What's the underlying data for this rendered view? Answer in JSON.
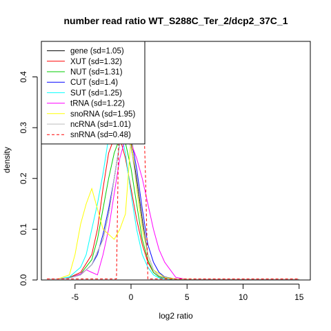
{
  "chart_data": {
    "type": "line",
    "title": "number read ratio WT_S288C_Ter_2/dcp2_37C_1",
    "xlabel": "log2 ratio",
    "ylabel": "density",
    "xlim": [
      -8,
      16
    ],
    "ylim": [
      0,
      0.47
    ],
    "xticks": [
      -5,
      0,
      5,
      10,
      15
    ],
    "yticks": [
      0.0,
      0.1,
      0.2,
      0.3,
      0.4
    ],
    "x_tick_labels": [
      "-5",
      "0",
      "5",
      "10",
      "15"
    ],
    "y_tick_labels": [
      "0.0",
      "0.1",
      "0.2",
      "0.3",
      "0.4"
    ],
    "grid": false,
    "legend_position": "top-left",
    "series": [
      {
        "name": "gene (sd=1.05)",
        "color": "#000000",
        "dash": false,
        "x": [
          -7.5,
          -6.5,
          -5.5,
          -4.5,
          -3.5,
          -2.5,
          -2,
          -1.5,
          -1,
          -0.5,
          0,
          0.5,
          1,
          1.5,
          2,
          2.5,
          3,
          3.5,
          4,
          5,
          6,
          8,
          10,
          12,
          15
        ],
        "y": [
          0.002,
          0.002,
          0.004,
          0.01,
          0.03,
          0.08,
          0.13,
          0.2,
          0.27,
          0.3,
          0.27,
          0.2,
          0.12,
          0.05,
          0.02,
          0.008,
          0.004,
          0.002,
          0.001,
          0.001,
          0.001,
          0.001,
          0.001,
          0.001,
          0.001
        ]
      },
      {
        "name": "XUT (sd=1.32)",
        "color": "#ff0000",
        "dash": false,
        "x": [
          -7.5,
          -6.5,
          -5.5,
          -4.5,
          -3.5,
          -3,
          -2.5,
          -2,
          -1.5,
          -1,
          -0.5,
          0,
          0.5,
          1,
          1.5,
          2,
          2.5,
          3,
          4,
          6,
          8,
          10,
          12,
          15
        ],
        "y": [
          0.002,
          0.002,
          0.005,
          0.015,
          0.05,
          0.1,
          0.18,
          0.25,
          0.28,
          0.28,
          0.24,
          0.18,
          0.12,
          0.07,
          0.035,
          0.015,
          0.006,
          0.003,
          0.001,
          0.001,
          0.001,
          0.001,
          0.001,
          0.001
        ]
      },
      {
        "name": "NUT (sd=1.31)",
        "color": "#00cd00",
        "dash": false,
        "x": [
          -7.5,
          -6.5,
          -5.5,
          -4.5,
          -3.5,
          -3,
          -2.5,
          -2,
          -1.5,
          -1,
          -0.5,
          0,
          0.5,
          1,
          1.5,
          2,
          2.5,
          3,
          4,
          6,
          8,
          10,
          12,
          15
        ],
        "y": [
          0.002,
          0.002,
          0.005,
          0.012,
          0.04,
          0.08,
          0.14,
          0.2,
          0.25,
          0.28,
          0.27,
          0.22,
          0.15,
          0.08,
          0.04,
          0.015,
          0.006,
          0.003,
          0.001,
          0.001,
          0.001,
          0.001,
          0.001,
          0.001
        ]
      },
      {
        "name": "CUT (sd=1.4)",
        "color": "#0000ff",
        "dash": false,
        "x": [
          -7.5,
          -6.5,
          -5.5,
          -4.5,
          -3.5,
          -3,
          -2.5,
          -2,
          -1.5,
          -1,
          -0.5,
          0,
          0.5,
          1,
          1.5,
          2,
          2.5,
          3,
          4,
          6,
          8,
          10,
          12,
          15
        ],
        "y": [
          0.002,
          0.002,
          0.004,
          0.01,
          0.03,
          0.05,
          0.09,
          0.14,
          0.2,
          0.27,
          0.3,
          0.28,
          0.22,
          0.14,
          0.07,
          0.035,
          0.015,
          0.006,
          0.002,
          0.001,
          0.001,
          0.001,
          0.001,
          0.001
        ]
      },
      {
        "name": "SUT (sd=1.25)",
        "color": "#00ffff",
        "dash": false,
        "x": [
          -7.5,
          -6.5,
          -5.5,
          -4.5,
          -4,
          -3.5,
          -3,
          -2.5,
          -2,
          -1.5,
          -1,
          -0.5,
          0,
          0.5,
          1,
          1.5,
          2,
          2.5,
          3,
          4,
          6,
          8,
          10,
          12,
          15
        ],
        "y": [
          0.002,
          0.002,
          0.006,
          0.025,
          0.05,
          0.1,
          0.15,
          0.21,
          0.28,
          0.31,
          0.3,
          0.25,
          0.17,
          0.1,
          0.05,
          0.025,
          0.01,
          0.004,
          0.002,
          0.001,
          0.001,
          0.001,
          0.001,
          0.001,
          0.001
        ]
      },
      {
        "name": "tRNA (sd=1.22)",
        "color": "#ff00ff",
        "dash": false,
        "x": [
          -7.5,
          -6.5,
          -5.5,
          -4.5,
          -4,
          -3.5,
          -3,
          -2.5,
          -2,
          -1.5,
          -1,
          -0.5,
          0,
          0.5,
          1,
          1.5,
          2,
          2.5,
          3,
          3.5,
          4,
          5,
          6,
          8,
          10,
          12,
          15
        ],
        "y": [
          0.002,
          0.002,
          0.004,
          0.012,
          0.02,
          0.015,
          0.01,
          0.05,
          0.1,
          0.17,
          0.24,
          0.28,
          0.27,
          0.24,
          0.2,
          0.15,
          0.1,
          0.06,
          0.035,
          0.02,
          0.005,
          0.001,
          0.001,
          0.001,
          0.001,
          0.001,
          0.001
        ]
      },
      {
        "name": "snoRNA (sd=1.95)",
        "color": "#ffff00",
        "dash": false,
        "x": [
          -7.5,
          -6.5,
          -5.5,
          -5,
          -4.5,
          -4,
          -3.5,
          -3,
          -2.5,
          -2,
          -1.5,
          -1,
          -0.5,
          0,
          0.5,
          1,
          1.5,
          2,
          3,
          4,
          6,
          8,
          10,
          12,
          15
        ],
        "y": [
          0.002,
          0.002,
          0.01,
          0.05,
          0.11,
          0.15,
          0.18,
          0.14,
          0.1,
          0.09,
          0.08,
          0.1,
          0.13,
          0.28,
          0.18,
          0.1,
          0.05,
          0.02,
          0.005,
          0.002,
          0.001,
          0.001,
          0.001,
          0.001,
          0.001
        ]
      },
      {
        "name": "ncRNA (sd=1.01)",
        "color": "#bebebe",
        "dash": false,
        "x": [
          -7.5,
          -6.5,
          -5.5,
          -4.5,
          -3.5,
          -2.5,
          -2,
          -1.5,
          -1,
          -0.5,
          0,
          0.5,
          1,
          1.5,
          2,
          2.5,
          3,
          4,
          6,
          8,
          10,
          12,
          15
        ],
        "y": [
          0.002,
          0.002,
          0.004,
          0.01,
          0.03,
          0.08,
          0.13,
          0.2,
          0.27,
          0.29,
          0.26,
          0.19,
          0.11,
          0.05,
          0.02,
          0.008,
          0.003,
          0.001,
          0.001,
          0.001,
          0.001,
          0.001,
          0.001
        ]
      },
      {
        "name": "snRNA (sd=0.48)",
        "color": "#ff0000",
        "dash": true,
        "x": [
          -7.5,
          -6.5,
          -5.5,
          -4.5,
          -3.5,
          -2.5,
          -1.5,
          -1.3,
          -1.1,
          -0.5,
          0,
          0.5,
          0.8,
          1.0,
          1.3,
          1.5,
          2.5,
          4,
          6,
          8,
          10,
          12,
          15
        ],
        "y": [
          0.002,
          0.002,
          0.002,
          0.002,
          0.002,
          0.002,
          0.002,
          0.002,
          0.29,
          0.29,
          0.29,
          0.29,
          0.42,
          0.42,
          0.2,
          0.002,
          0.002,
          0.002,
          0.002,
          0.002,
          0.002,
          0.002,
          0.002
        ]
      }
    ]
  }
}
